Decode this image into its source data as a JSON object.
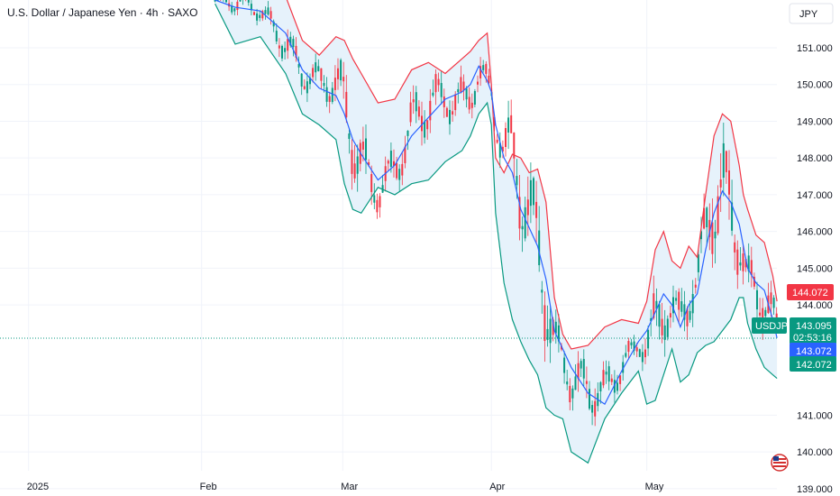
{
  "header": {
    "title": "U.S. Dollar / Japanese Yen · 4h · SAXO",
    "currency_button": "JPY"
  },
  "colors": {
    "upper_band": "#f23645",
    "middle_band": "#2962ff",
    "lower_band": "#089981",
    "band_fill": "#e6f2fb",
    "candle_up": "#089981",
    "candle_down": "#f23645",
    "current_price": "#089981"
  },
  "chart_data": {
    "type": "line",
    "title": "U.S. Dollar / Japanese Yen · 4h · SAXO",
    "symbol": "USDJPY",
    "ylim": [
      138.8,
      152.3
    ],
    "y_ticks": [
      "151.000",
      "150.000",
      "149.000",
      "148.000",
      "147.000",
      "146.000",
      "145.000",
      "144.000",
      "141.000",
      "140.000",
      "139.000"
    ],
    "x_ticks": [
      "2025",
      "Feb",
      "Mar",
      "Apr",
      "May"
    ],
    "grid": true,
    "price_labels": {
      "upper": "144.072",
      "current": "143.095",
      "countdown": "02:53:16",
      "middle": "143.072",
      "lower": "142.072"
    },
    "current_price": 143.095,
    "series": [
      {
        "key": "upper",
        "x": [
          0.256,
          0.28,
          0.31,
          0.34,
          0.36,
          0.38,
          0.4,
          0.41,
          0.42,
          0.43,
          0.45,
          0.47,
          0.49,
          0.51,
          0.53,
          0.55,
          0.56,
          0.57,
          0.58,
          0.585,
          0.59,
          0.6,
          0.61,
          0.62,
          0.63,
          0.64,
          0.65,
          0.66,
          0.67,
          0.68,
          0.7,
          0.72,
          0.74,
          0.76,
          0.77,
          0.78,
          0.79,
          0.8,
          0.81,
          0.82,
          0.83,
          0.84,
          0.85,
          0.86,
          0.87,
          0.88,
          0.885,
          0.89,
          0.9,
          0.91,
          0.92,
          0.925
        ],
        "values": [
          152.4,
          152.4,
          152.4,
          152.4,
          151.2,
          150.8,
          151.3,
          151.2,
          150.7,
          150.3,
          149.5,
          149.6,
          150.4,
          150.6,
          150.3,
          150.7,
          150.9,
          151.2,
          151.4,
          150.0,
          148.0,
          147.6,
          148.1,
          148.0,
          147.6,
          147.7,
          146.8,
          144.2,
          143.2,
          142.8,
          142.9,
          143.4,
          143.6,
          143.5,
          144.1,
          145.5,
          146.0,
          145.2,
          145.0,
          145.6,
          145.3,
          147.0,
          148.6,
          149.2,
          149.0,
          147.8,
          147.0,
          146.6,
          145.9,
          145.7,
          144.8,
          144.1
        ]
      },
      {
        "key": "middle",
        "x": [
          0.256,
          0.28,
          0.31,
          0.34,
          0.36,
          0.38,
          0.4,
          0.41,
          0.42,
          0.43,
          0.45,
          0.47,
          0.49,
          0.51,
          0.53,
          0.55,
          0.56,
          0.57,
          0.58,
          0.585,
          0.59,
          0.6,
          0.61,
          0.62,
          0.63,
          0.64,
          0.65,
          0.66,
          0.67,
          0.68,
          0.7,
          0.72,
          0.74,
          0.76,
          0.77,
          0.78,
          0.79,
          0.8,
          0.81,
          0.82,
          0.83,
          0.84,
          0.85,
          0.86,
          0.87,
          0.88,
          0.885,
          0.89,
          0.9,
          0.91,
          0.92,
          0.925
        ],
        "values": [
          152.3,
          152.1,
          152.0,
          151.4,
          150.4,
          149.9,
          149.7,
          149.2,
          148.5,
          148.1,
          147.4,
          147.8,
          148.6,
          149.1,
          149.6,
          149.8,
          150.0,
          150.5,
          150.1,
          149.8,
          148.9,
          148.0,
          147.6,
          146.6,
          146.1,
          145.6,
          144.7,
          143.3,
          142.8,
          142.3,
          141.6,
          141.3,
          142.2,
          143.0,
          143.3,
          143.8,
          144.3,
          144.0,
          143.4,
          144.0,
          144.3,
          145.5,
          146.5,
          147.1,
          146.8,
          146.2,
          145.6,
          145.0,
          144.6,
          144.4,
          143.6,
          143.1
        ]
      },
      {
        "key": "lower",
        "x": [
          0.256,
          0.28,
          0.31,
          0.34,
          0.36,
          0.38,
          0.4,
          0.41,
          0.42,
          0.43,
          0.45,
          0.47,
          0.49,
          0.51,
          0.53,
          0.55,
          0.56,
          0.57,
          0.58,
          0.585,
          0.59,
          0.6,
          0.61,
          0.62,
          0.63,
          0.64,
          0.65,
          0.66,
          0.67,
          0.68,
          0.7,
          0.72,
          0.74,
          0.76,
          0.77,
          0.78,
          0.79,
          0.8,
          0.81,
          0.82,
          0.83,
          0.84,
          0.85,
          0.86,
          0.87,
          0.88,
          0.885,
          0.89,
          0.9,
          0.91,
          0.92,
          0.925
        ],
        "values": [
          152.2,
          151.1,
          151.3,
          150.3,
          149.2,
          148.9,
          148.5,
          147.3,
          146.6,
          146.5,
          147.2,
          147.0,
          147.3,
          147.4,
          147.9,
          148.2,
          148.6,
          149.2,
          149.5,
          148.9,
          146.5,
          144.6,
          143.6,
          143.0,
          142.5,
          142.1,
          141.2,
          141.0,
          140.9,
          140.0,
          139.7,
          140.9,
          141.6,
          142.2,
          141.3,
          141.4,
          142.1,
          142.8,
          141.9,
          142.1,
          142.7,
          142.9,
          143.0,
          143.3,
          143.6,
          144.2,
          144.2,
          143.5,
          142.8,
          142.3,
          142.1,
          142.0
        ]
      }
    ]
  }
}
